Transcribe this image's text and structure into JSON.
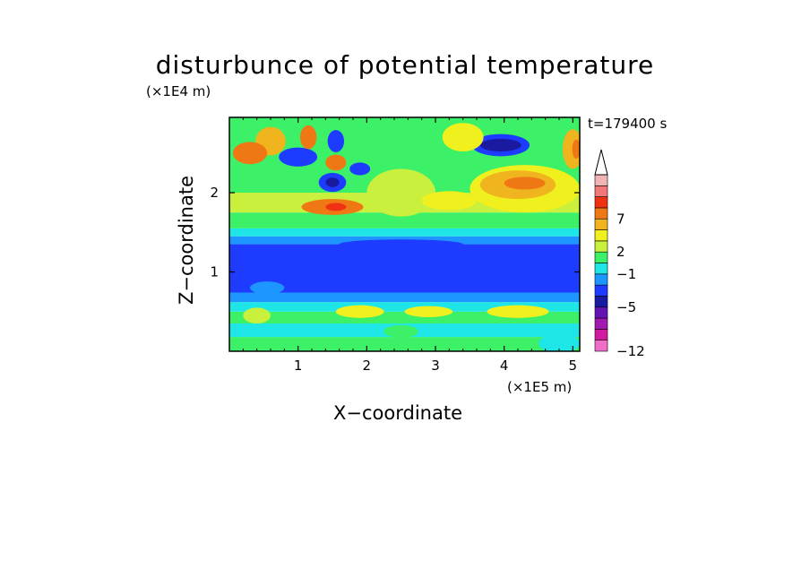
{
  "chart_data": {
    "type": "heatmap",
    "title": "disturbunce of potential temperature",
    "xlabel": "X−coordinate",
    "ylabel": "Z−coordinate",
    "x_unit": "(×1E5 m)",
    "y_unit": "(×1E4 m)",
    "time_label": "t=179400 s",
    "x_ticks": [
      "1",
      "2",
      "3",
      "4",
      "5"
    ],
    "y_ticks": [
      "1",
      "2"
    ],
    "xlim": [
      0,
      5.1
    ],
    "ylim": [
      0,
      2.95
    ],
    "colorbar": {
      "tick_labels": [
        "7",
        "2",
        "−1",
        "−5",
        "−12"
      ],
      "colors": [
        "#f06ec8",
        "#d01aa0",
        "#a01ab0",
        "#6414b4",
        "#1a1aa0",
        "#1e3cff",
        "#1e96ff",
        "#1ee6e6",
        "#3cf068",
        "#c8f03c",
        "#f0f01e",
        "#f0b41e",
        "#f07814",
        "#f03214",
        "#f07878",
        "#f0b4b4"
      ]
    },
    "bands": [
      {
        "z0": 0.0,
        "z1": 0.18,
        "color": "#3cf068"
      },
      {
        "z0": 0.18,
        "z1": 0.35,
        "color": "#1ee6e6"
      },
      {
        "z0": 0.35,
        "z1": 0.5,
        "color": "#3cf068"
      },
      {
        "z0": 0.5,
        "z1": 0.62,
        "color": "#1ee6e6"
      },
      {
        "z0": 0.62,
        "z1": 0.74,
        "color": "#1e96ff"
      },
      {
        "z0": 0.74,
        "z1": 1.35,
        "color": "#1e3cff"
      },
      {
        "z0": 1.35,
        "z1": 1.45,
        "color": "#1e96ff"
      },
      {
        "z0": 1.45,
        "z1": 1.55,
        "color": "#1ee6e6"
      },
      {
        "z0": 1.55,
        "z1": 1.75,
        "color": "#3cf068"
      },
      {
        "z0": 1.75,
        "z1": 2.0,
        "color": "#c8f03c"
      },
      {
        "z0": 2.0,
        "z1": 2.95,
        "color": "#3cf068"
      }
    ],
    "blobs": [
      {
        "x": 3.95,
        "z": 2.6,
        "rx": 0.42,
        "rz": 0.14,
        "color": "#1e3cff"
      },
      {
        "x": 3.95,
        "z": 2.6,
        "rx": 0.3,
        "rz": 0.08,
        "color": "#1a1aa0"
      },
      {
        "x": 1.5,
        "z": 2.13,
        "rx": 0.2,
        "rz": 0.12,
        "color": "#1e3cff"
      },
      {
        "x": 1.5,
        "z": 2.13,
        "rx": 0.1,
        "rz": 0.06,
        "color": "#1a1aa0"
      },
      {
        "x": 1.0,
        "z": 2.45,
        "rx": 0.28,
        "rz": 0.12,
        "color": "#1e3cff"
      },
      {
        "x": 1.55,
        "z": 2.65,
        "rx": 0.12,
        "rz": 0.14,
        "color": "#1e3cff"
      },
      {
        "x": 1.9,
        "z": 2.3,
        "rx": 0.15,
        "rz": 0.08,
        "color": "#1e3cff"
      },
      {
        "x": 1.15,
        "z": 2.7,
        "rx": 0.12,
        "rz": 0.15,
        "color": "#f07814"
      },
      {
        "x": 0.6,
        "z": 2.65,
        "rx": 0.22,
        "rz": 0.18,
        "color": "#f0b41e"
      },
      {
        "x": 0.3,
        "z": 2.5,
        "rx": 0.25,
        "rz": 0.14,
        "color": "#f07814"
      },
      {
        "x": 1.5,
        "z": 1.82,
        "rx": 0.45,
        "rz": 0.1,
        "color": "#f07814"
      },
      {
        "x": 1.55,
        "z": 1.82,
        "rx": 0.15,
        "rz": 0.05,
        "color": "#f03214"
      },
      {
        "x": 1.55,
        "z": 2.38,
        "rx": 0.15,
        "rz": 0.1,
        "color": "#f07814"
      },
      {
        "x": 2.5,
        "z": 2.0,
        "rx": 0.5,
        "rz": 0.3,
        "color": "#c8f03c"
      },
      {
        "x": 3.4,
        "z": 2.7,
        "rx": 0.3,
        "rz": 0.18,
        "color": "#f0f01e"
      },
      {
        "x": 4.3,
        "z": 2.05,
        "rx": 0.8,
        "rz": 0.3,
        "color": "#f0f01e"
      },
      {
        "x": 4.2,
        "z": 2.1,
        "rx": 0.55,
        "rz": 0.18,
        "color": "#f0b41e"
      },
      {
        "x": 4.3,
        "z": 2.12,
        "rx": 0.3,
        "rz": 0.08,
        "color": "#f07814"
      },
      {
        "x": 5.0,
        "z": 2.55,
        "rx": 0.15,
        "rz": 0.25,
        "color": "#f0b41e"
      },
      {
        "x": 5.05,
        "z": 2.55,
        "rx": 0.06,
        "rz": 0.12,
        "color": "#f07814"
      },
      {
        "x": 3.2,
        "z": 1.9,
        "rx": 0.4,
        "rz": 0.12,
        "color": "#f0f01e"
      },
      {
        "x": 2.5,
        "z": 1.35,
        "rx": 0.9,
        "rz": 0.06,
        "color": "#1e3cff"
      },
      {
        "x": 1.9,
        "z": 0.5,
        "rx": 0.35,
        "rz": 0.08,
        "color": "#f0f01e"
      },
      {
        "x": 2.9,
        "z": 0.5,
        "rx": 0.35,
        "rz": 0.07,
        "color": "#f0f01e"
      },
      {
        "x": 4.2,
        "z": 0.5,
        "rx": 0.45,
        "rz": 0.08,
        "color": "#f0f01e"
      },
      {
        "x": 0.4,
        "z": 0.45,
        "rx": 0.2,
        "rz": 0.1,
        "color": "#c8f03c"
      },
      {
        "x": 4.8,
        "z": 0.1,
        "rx": 0.3,
        "rz": 0.12,
        "color": "#1ee6e6"
      },
      {
        "x": 2.5,
        "z": 0.25,
        "rx": 0.25,
        "rz": 0.08,
        "color": "#3cf068"
      },
      {
        "x": 0.55,
        "z": 0.8,
        "rx": 0.25,
        "rz": 0.08,
        "color": "#1e96ff"
      }
    ]
  }
}
